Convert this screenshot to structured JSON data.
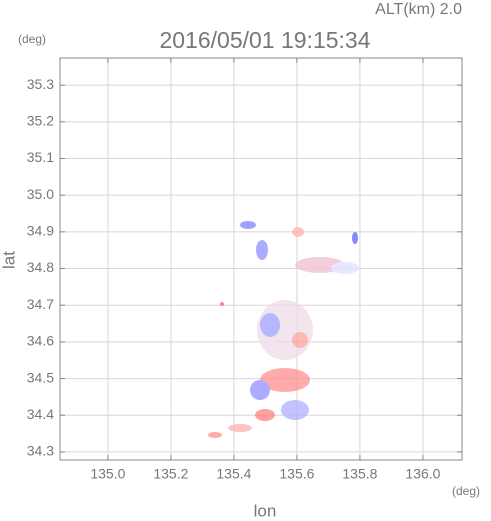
{
  "chart_data": {
    "type": "map",
    "title": "2016/05/01 19:15:34",
    "altitude_label": "ALT(km) 2.0",
    "y_unit": "(deg)",
    "x_unit": "(deg)",
    "xlabel": "lon",
    "ylabel": "lat",
    "xlim": [
      134.848,
      136.124
    ],
    "ylim": [
      34.278,
      35.374
    ],
    "xticks": [
      {
        "value": 135.0,
        "label": "135.0"
      },
      135.2,
      135.4,
      135.6,
      135.8,
      {
        "value": 136.0,
        "label": "136.0"
      }
    ],
    "yticks": [
      34.3,
      34.4,
      34.5,
      34.6,
      34.7,
      34.8,
      34.9,
      {
        "value": 35.0,
        "label": "35.0"
      },
      35.1,
      35.2,
      35.3
    ],
    "grid": true
  }
}
